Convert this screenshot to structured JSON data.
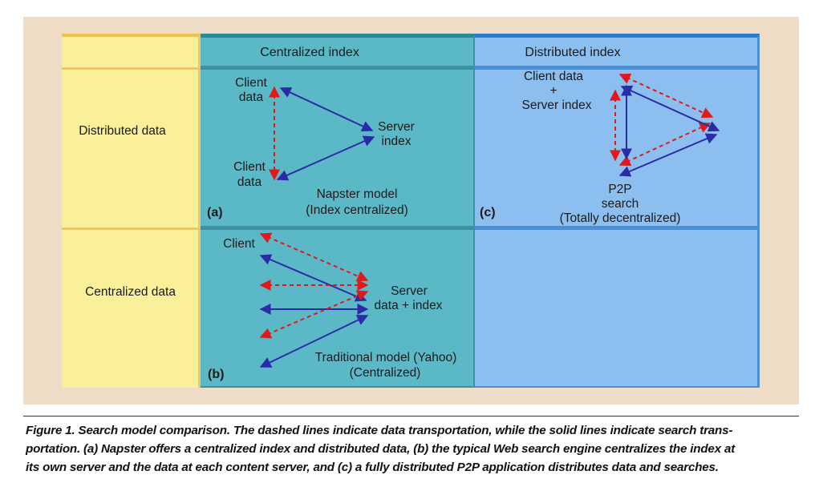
{
  "columns": {
    "centralized_index": "Centralized index",
    "distributed_index": "Distributed index"
  },
  "rows": {
    "distributed_data": "Distributed data",
    "centralized_data": "Centralized data"
  },
  "panel_a": {
    "tag": "(a)",
    "client_top": [
      "Client",
      "data"
    ],
    "client_bottom": [
      "Client",
      "data"
    ],
    "server": [
      "Server",
      "index"
    ],
    "model": [
      "Napster model",
      "(Index centralized)"
    ]
  },
  "panel_b": {
    "tag": "(b)",
    "client": "Client",
    "server": [
      "Server",
      "data + index"
    ],
    "model": [
      "Traditional model (Yahoo)",
      "(Centralized)"
    ]
  },
  "panel_c": {
    "tag": "(c)",
    "top": [
      "Client data",
      "+",
      "Server index"
    ],
    "bottom": [
      "P2P",
      "search"
    ],
    "model": "(Totally decentralized)"
  },
  "colors": {
    "solid_arrow": "#2b2ba8",
    "dashed_arrow": "#e01a1a"
  },
  "caption": [
    "Figure 1. Search model comparison. The dashed lines indicate data transportation, while the solid lines indicate search trans-",
    "portation. (a) Napster offers a centralized index and distributed data, (b) the typical Web search engine centralizes the index at",
    "its own server and the data at each content server, and (c) a fully distributed P2P application distributes data and searches."
  ]
}
